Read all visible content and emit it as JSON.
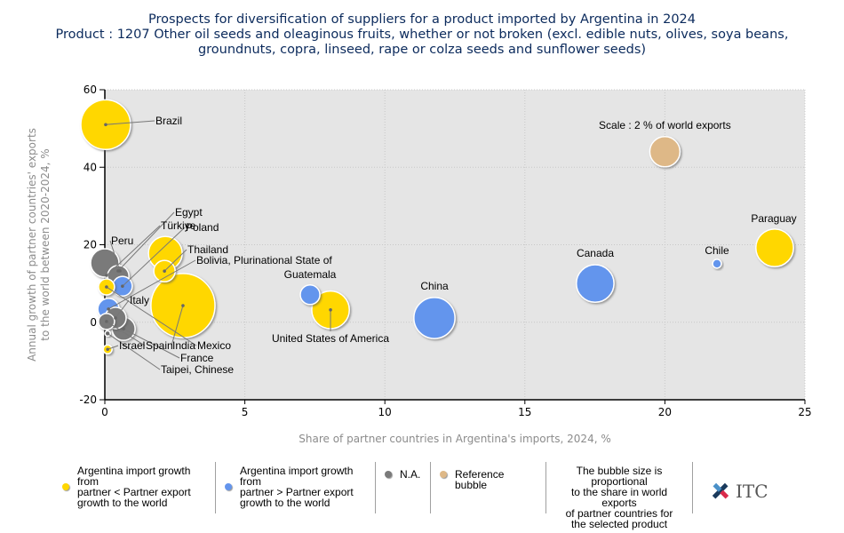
{
  "title": {
    "line1": "Prospects for diversification of suppliers for a product imported by Argentina in 2024",
    "line2": "Product : 1207 Other oil seeds and oleaginous fruits, whether or not broken (excl. edible nuts, olives, soya beans,",
    "line3": "groundnuts, copra, linseed, rape or colza seeds and sunflower seeds)"
  },
  "colors": {
    "yellow": "#FFD700",
    "blue": "#6495ED",
    "gray": "#7A7A7A",
    "reference": "#DEB887",
    "plot_background": "#E5E5E5"
  },
  "chart_data": {
    "type": "scatter",
    "subtype": "bubble",
    "title": "Prospects for diversification of suppliers for a product imported by Argentina in 2024",
    "xlabel": "Share of partner countries in Argentina's imports, 2024, %",
    "ylabel_line1": "Annual growth of partner countries' exports",
    "ylabel_line2": "to the world between 2020-2024, %",
    "xlim": [
      0,
      25
    ],
    "ylim": [
      -20,
      60
    ],
    "xticks": [
      0,
      5,
      10,
      15,
      20,
      25
    ],
    "yticks": [
      -20,
      0,
      20,
      40,
      60
    ],
    "grid": true,
    "size_meaning": "share in world exports of partner countries (%)",
    "reference_bubble": {
      "label": "Scale : 2 % of world exports",
      "x": 20.0,
      "y": 44.0,
      "size": 2
    },
    "points": [
      {
        "name": "Brazil",
        "x": 0.03,
        "y": 51.0,
        "size": 5.4,
        "group": "yellow"
      },
      {
        "name": "Egypt",
        "x": 2.16,
        "y": 17.8,
        "size": 2.5,
        "group": "yellow"
      },
      {
        "name": "Thailand",
        "x": 2.13,
        "y": 13.2,
        "size": 1.0,
        "group": "yellow"
      },
      {
        "name": "Peru",
        "x": 0.0,
        "y": 15.3,
        "size": 1.77,
        "group": "gray"
      },
      {
        "name": "Türkiye",
        "x": 0.48,
        "y": 11.9,
        "size": 1.0,
        "group": "gray"
      },
      {
        "name": "Poland",
        "x": 0.63,
        "y": 9.3,
        "size": 0.84,
        "group": "blue"
      },
      {
        "name": "Mexico",
        "x": 0.06,
        "y": 9.1,
        "size": 0.56,
        "group": "yellow"
      },
      {
        "name": "Bolivia, Plurinational State of",
        "x": 0.13,
        "y": 3.4,
        "size": 1.0,
        "group": "blue"
      },
      {
        "name": "Italy",
        "x": 0.38,
        "y": 1.1,
        "size": 1.0,
        "group": "gray"
      },
      {
        "name": "Spain",
        "x": 0.06,
        "y": 0.2,
        "size": 0.56,
        "group": "gray"
      },
      {
        "name": "France",
        "x": 0.67,
        "y": -1.7,
        "size": 1.17,
        "group": "gray"
      },
      {
        "name": "Taipei, Chinese",
        "x": 0.1,
        "y": -2.9,
        "size": 0.06,
        "group": "gray"
      },
      {
        "name": "Israel",
        "x": 0.1,
        "y": -7.0,
        "size": 0.17,
        "group": "yellow"
      },
      {
        "name": "India",
        "x": 2.79,
        "y": 4.3,
        "size": 9.0,
        "group": "yellow"
      },
      {
        "name": "Guatemala",
        "x": 7.33,
        "y": 7.1,
        "size": 0.84,
        "group": "blue"
      },
      {
        "name": "United States of America",
        "x": 8.06,
        "y": 3.2,
        "size": 3.1,
        "group": "yellow"
      },
      {
        "name": "China",
        "x": 11.77,
        "y": 1.1,
        "size": 3.7,
        "group": "blue"
      },
      {
        "name": "Canada",
        "x": 17.51,
        "y": 10.0,
        "size": 3.1,
        "group": "blue"
      },
      {
        "name": "Chile",
        "x": 21.86,
        "y": 15.1,
        "size": 0.17,
        "group": "blue"
      },
      {
        "name": "Paraguay",
        "x": 23.92,
        "y": 19.2,
        "size": 3.1,
        "group": "yellow"
      }
    ],
    "legend": [
      {
        "group": "yellow",
        "label_lines": [
          "Argentina import growth from",
          "partner < Partner export",
          "growth to the world"
        ]
      },
      {
        "group": "blue",
        "label_lines": [
          "Argentina import growth from",
          "partner > Partner export",
          "growth to the world"
        ]
      },
      {
        "group": "gray",
        "label_lines": [
          "N.A."
        ]
      },
      {
        "group": "reference",
        "label_lines": [
          "Reference bubble"
        ]
      }
    ],
    "legend_position": "bottom",
    "note_lines": [
      "The bubble size is proportional",
      "to the share in world exports",
      "of partner countries for",
      "the selected product"
    ]
  },
  "logo": {
    "text": "ITC"
  }
}
